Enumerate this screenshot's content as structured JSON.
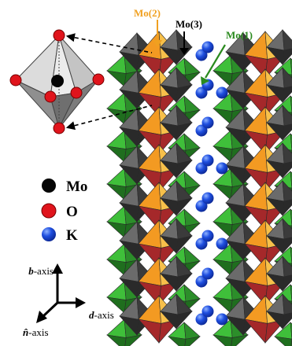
{
  "annotations": {
    "mo2": {
      "text": "Mo(2)",
      "color": "#f0a020"
    },
    "mo3": {
      "text": "Mo(3)",
      "color": "#000000"
    },
    "mo1": {
      "text": "Mo(1)",
      "color": "#2a8a1e"
    }
  },
  "legend": {
    "mo": {
      "symbol": "●",
      "label": "Mo",
      "color": "#000000"
    },
    "o": {
      "symbol": "●",
      "label": "O",
      "color": "#e0141c"
    },
    "k": {
      "symbol": "●",
      "label": "K",
      "color": "#1a4fd8"
    }
  },
  "axes": {
    "b": {
      "letter": "b",
      "suffix": "-axis"
    },
    "d": {
      "letter": "d",
      "suffix": "-axis"
    },
    "n": {
      "letter": "n̂",
      "suffix": "-axis"
    }
  },
  "colors": {
    "orange": "#f39a22",
    "dark_red": "#a5282a",
    "gray": "#6b6b6b",
    "dark_gray": "#3b3b3b",
    "green": "#3fbf3a",
    "blue": "#1a4fd8"
  }
}
